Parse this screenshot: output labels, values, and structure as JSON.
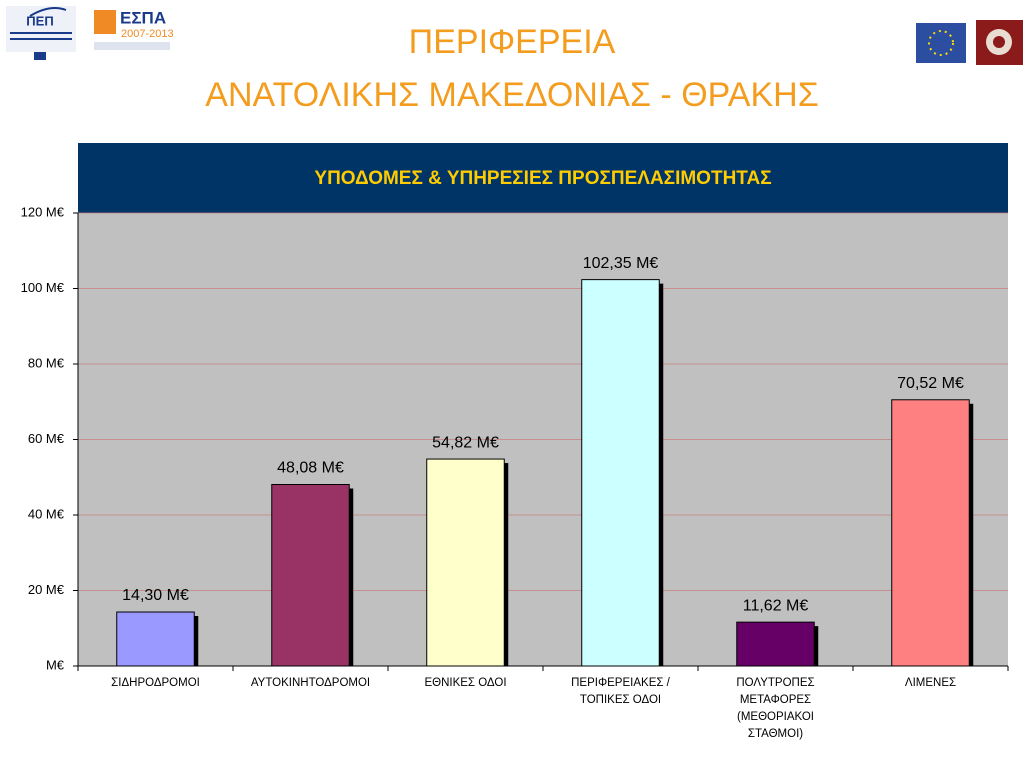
{
  "header": {
    "title_lines": [
      "ΠΕΡΙΦΕΡΕΙΑ",
      "ΑΝΑΤΟΛΙΚΗΣ ΜΑΚΕΔΟΝΙΑΣ - ΘΡΑΚΗΣ"
    ]
  },
  "logos": {
    "espa": "ΕΣΠΑ",
    "espa_years": "2007-2013",
    "pep": "ΠΕΠ"
  },
  "chart_data": {
    "type": "bar",
    "title": "ΥΠΟΔΟΜΕΣ & ΥΠΗΡΕΣΙΕΣ ΠΡΟΣΠΕΛΑΣΙΜΟΤΗΤΑΣ",
    "categories": [
      "ΣΙΔΗΡΟΔΡΟΜΟΙ",
      "ΑΥΤΟΚΙΝΗΤΟΔΡΟΜΟΙ",
      "ΕΘΝΙΚΕΣ ΟΔΟΙ",
      "ΠΕΡΙΦΕΡΕΙΑΚΕΣ / ΤΟΠΙΚΕΣ ΟΔΟΙ",
      "ΠΟΛΥΤΡΟΠΕΣ ΜΕΤΑΦΟΡΕΣ (ΜΕΘΟΡΙΑΚΟΙ ΣΤΑΘΜΟΙ)",
      "ΛΙΜΕΝΕΣ"
    ],
    "values": [
      14.3,
      48.08,
      54.82,
      102.35,
      11.62,
      70.52
    ],
    "value_labels": [
      "14,30 M€",
      "48,08 M€",
      "54,82 M€",
      "102,35 M€",
      "11,62 M€",
      "70,52 M€"
    ],
    "colors": [
      "#9999ff",
      "#993366",
      "#ffffcc",
      "#ccffff",
      "#660066",
      "#ff8080"
    ],
    "ylim": [
      0,
      120
    ],
    "yticks": [
      {
        "value": 0,
        "label": "M€"
      },
      {
        "value": 20,
        "label": "20 M€"
      },
      {
        "value": 40,
        "label": "40 M€"
      },
      {
        "value": 60,
        "label": "60 M€"
      },
      {
        "value": 80,
        "label": "80 M€"
      },
      {
        "value": 100,
        "label": "100 M€"
      },
      {
        "value": 120,
        "label": "120 M€"
      }
    ],
    "grid": true
  }
}
